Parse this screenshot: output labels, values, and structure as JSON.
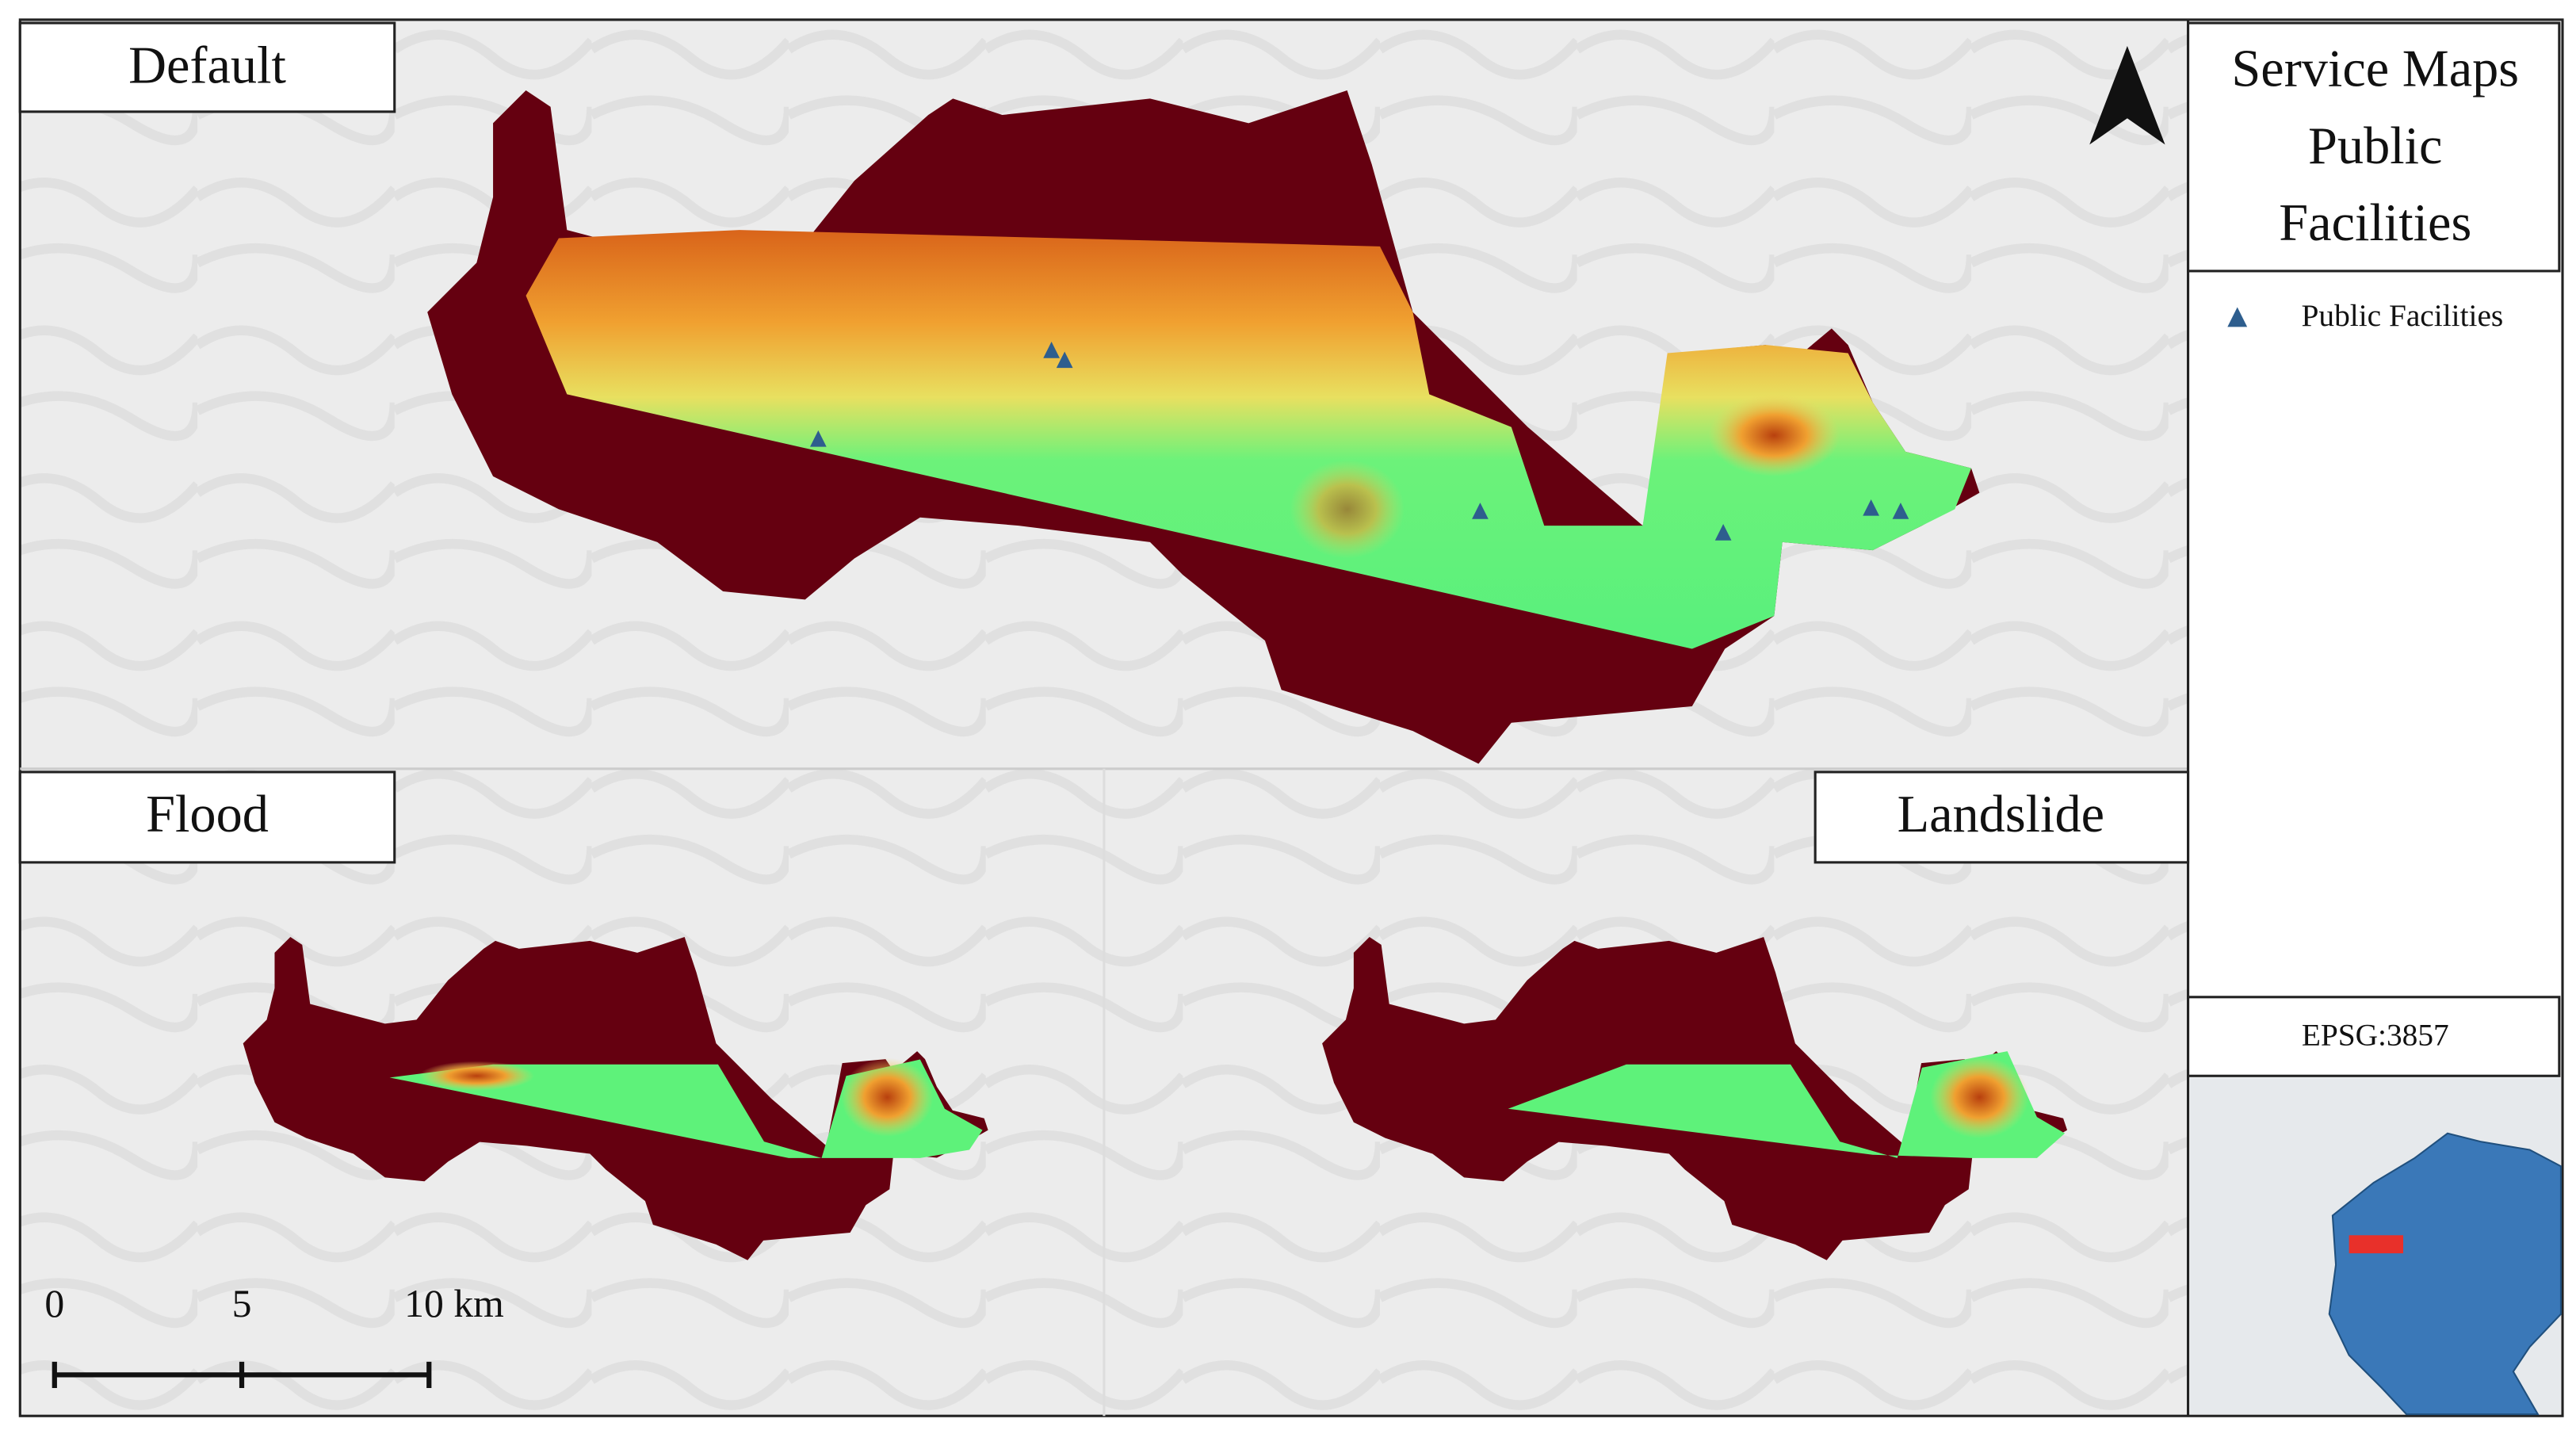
{
  "panels": [
    {
      "label": "Default"
    },
    {
      "label": "Flood"
    },
    {
      "label": "Landslide"
    }
  ],
  "title_lines": [
    "Service Maps",
    "Public",
    "Facilities"
  ],
  "legend": {
    "items": [
      "Public Facilities"
    ]
  },
  "crs": "EPSG:3857",
  "scale_bar": {
    "labels": [
      "0",
      "5",
      "10 km"
    ]
  }
}
